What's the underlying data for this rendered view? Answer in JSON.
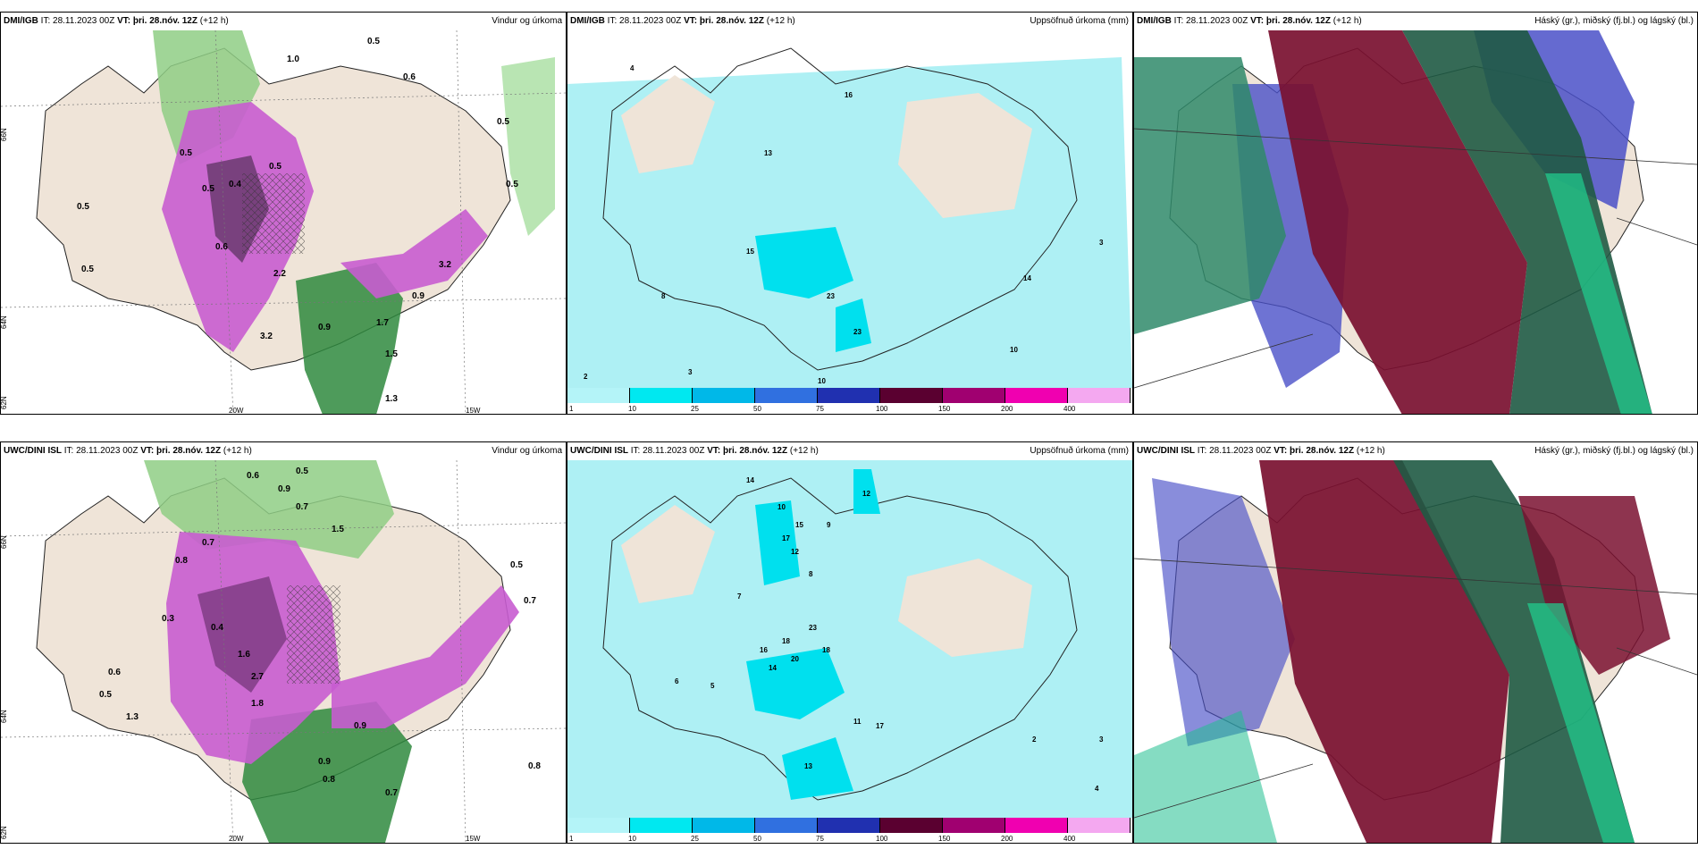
{
  "top_row": {
    "p1": {
      "model": "DMI/IGB",
      "it": "28.11.2023 00Z",
      "vt_label": "VT:",
      "vt": "þri. 28.nóv. 12Z",
      "lead": "(+12 h)",
      "title": "Vindur og úrkoma"
    },
    "p2": {
      "model": "DMI/IGB",
      "it": "28.11.2023 00Z",
      "vt_label": "VT:",
      "vt": "þri. 28.nóv. 12Z",
      "lead": "(+12 h)",
      "title": "Uppsöfnuð úrkoma (mm)"
    },
    "p3": {
      "model": "DMI/IGB",
      "it": "28.11.2023 00Z",
      "vt_label": "VT:",
      "vt": "þri. 28.nóv. 12Z",
      "lead": "(+12 h)",
      "title": "Háský (gr.), miðský (fj.bl.) og lágský (bl.)"
    }
  },
  "bottom_row": {
    "p1": {
      "model": "UWC/DINI ISL",
      "it": "28.11.2023 00Z",
      "vt_label": "VT:",
      "vt": "þri. 28.nóv. 12Z",
      "lead": "(+12 h)",
      "title": "Vindur og úrkoma"
    },
    "p2": {
      "model": "UWC/DINI ISL",
      "it": "28.11.2023 00Z",
      "vt_label": "VT:",
      "vt": "þri. 28.nóv. 12Z",
      "lead": "(+12 h)",
      "title": "Uppsöfnuð úrkoma (mm)"
    },
    "p3": {
      "model": "UWC/DINI ISL",
      "it": "28.11.2023 00Z",
      "vt_label": "VT:",
      "vt": "þri. 28.nóv. 12Z",
      "lead": "(+12 h)",
      "title": "Háský (gr.), miðský (fj.bl.) og lágský (bl.)"
    }
  },
  "it_label": "IT:",
  "axis": {
    "lat66": "66N",
    "lat64": "64N",
    "lat_bottom": "62N",
    "lon20": "20W",
    "lon15": "15W"
  },
  "colorbar": {
    "labels": [
      "1",
      "10",
      "25",
      "50",
      "75",
      "100",
      "150",
      "200",
      "400"
    ],
    "colors": [
      "#b4f4f8",
      "#00e8f0",
      "#00b8e8",
      "#3070e0",
      "#2030b0",
      "#5a0030",
      "#a00070",
      "#f000b0",
      "#f4a8f0"
    ]
  },
  "top_wind_values": [
    "0.5",
    "1.0",
    "0.6",
    "0.5",
    "0.5",
    "0.5",
    "0.5",
    "0.4",
    "0.5",
    "0.6",
    "0.9",
    "2.2",
    "3.2",
    "1.7",
    "0.9",
    "1.3",
    "1.5",
    "0.5",
    "3.2",
    "0.5"
  ],
  "top_accum_values": [
    "4",
    "16",
    "13",
    "15",
    "23",
    "23",
    "8",
    "3",
    "2",
    "10",
    "14",
    "3",
    "10"
  ],
  "bottom_wind_values": [
    "0.6",
    "0.9",
    "0.5",
    "0.7",
    "0.7",
    "0.8",
    "1.5",
    "0.5",
    "0.7",
    "0.3",
    "0.4",
    "1.6",
    "2.7",
    "1.8",
    "0.8",
    "0.6",
    "0.7",
    "0.9",
    "0.8",
    "0.5",
    "1.3",
    "0.9"
  ],
  "bottom_accum_values": [
    "14",
    "12",
    "10",
    "15",
    "17",
    "18",
    "23",
    "16",
    "14",
    "20",
    "18",
    "12",
    "9",
    "8",
    "7",
    "5",
    "6",
    "11",
    "13",
    "17",
    "2",
    "3",
    "4"
  ]
}
